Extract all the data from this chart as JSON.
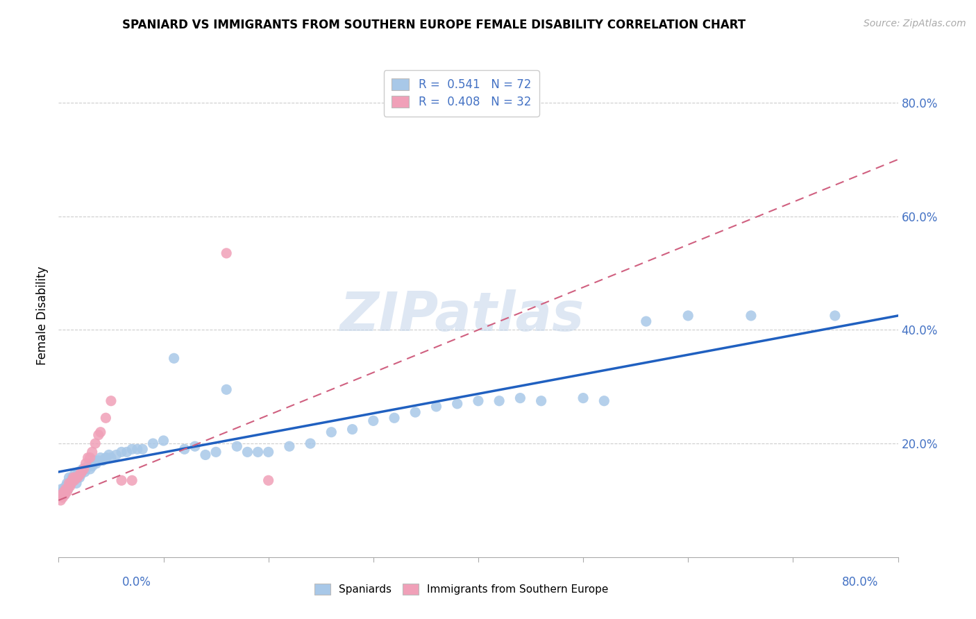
{
  "title": "SPANIARD VS IMMIGRANTS FROM SOUTHERN EUROPE FEMALE DISABILITY CORRELATION CHART",
  "source": "Source: ZipAtlas.com",
  "ylabel": "Female Disability",
  "xmin": 0.0,
  "xmax": 0.8,
  "ymin": 0.0,
  "ymax": 0.85,
  "yticks": [
    0.2,
    0.4,
    0.6,
    0.8
  ],
  "ytick_labels": [
    "20.0%",
    "40.0%",
    "60.0%",
    "80.0%"
  ],
  "watermark": "ZIPatlas",
  "legend_r1": "R =  0.541",
  "legend_n1": "N = 72",
  "legend_r2": "R =  0.408",
  "legend_n2": "N = 32",
  "color_blue": "#a8c8e8",
  "color_pink": "#f0a0b8",
  "color_blue_line": "#2060c0",
  "color_pink_line": "#d06080",
  "spaniards_x": [
    0.002,
    0.003,
    0.004,
    0.005,
    0.006,
    0.007,
    0.008,
    0.009,
    0.01,
    0.01,
    0.012,
    0.013,
    0.014,
    0.015,
    0.016,
    0.017,
    0.018,
    0.019,
    0.02,
    0.021,
    0.022,
    0.023,
    0.025,
    0.026,
    0.028,
    0.03,
    0.032,
    0.034,
    0.036,
    0.038,
    0.04,
    0.042,
    0.045,
    0.048,
    0.05,
    0.055,
    0.06,
    0.065,
    0.07,
    0.075,
    0.08,
    0.09,
    0.1,
    0.11,
    0.12,
    0.13,
    0.14,
    0.15,
    0.16,
    0.17,
    0.18,
    0.19,
    0.2,
    0.22,
    0.24,
    0.26,
    0.28,
    0.3,
    0.32,
    0.34,
    0.36,
    0.38,
    0.4,
    0.42,
    0.44,
    0.46,
    0.5,
    0.52,
    0.56,
    0.6,
    0.66,
    0.74
  ],
  "spaniards_y": [
    0.11,
    0.12,
    0.115,
    0.12,
    0.11,
    0.125,
    0.13,
    0.12,
    0.13,
    0.14,
    0.13,
    0.14,
    0.135,
    0.145,
    0.14,
    0.13,
    0.145,
    0.15,
    0.14,
    0.145,
    0.15,
    0.155,
    0.15,
    0.155,
    0.16,
    0.155,
    0.16,
    0.17,
    0.165,
    0.17,
    0.175,
    0.17,
    0.175,
    0.18,
    0.175,
    0.18,
    0.185,
    0.185,
    0.19,
    0.19,
    0.19,
    0.2,
    0.205,
    0.35,
    0.19,
    0.195,
    0.18,
    0.185,
    0.295,
    0.195,
    0.185,
    0.185,
    0.185,
    0.195,
    0.2,
    0.22,
    0.225,
    0.24,
    0.245,
    0.255,
    0.265,
    0.27,
    0.275,
    0.275,
    0.28,
    0.275,
    0.28,
    0.275,
    0.415,
    0.425,
    0.425,
    0.425
  ],
  "immigrants_x": [
    0.002,
    0.003,
    0.004,
    0.005,
    0.006,
    0.007,
    0.008,
    0.009,
    0.01,
    0.011,
    0.012,
    0.013,
    0.014,
    0.015,
    0.016,
    0.018,
    0.02,
    0.022,
    0.024,
    0.026,
    0.028,
    0.03,
    0.032,
    0.035,
    0.038,
    0.04,
    0.045,
    0.05,
    0.06,
    0.07,
    0.16,
    0.2
  ],
  "immigrants_y": [
    0.1,
    0.11,
    0.105,
    0.115,
    0.11,
    0.12,
    0.115,
    0.12,
    0.13,
    0.125,
    0.13,
    0.135,
    0.14,
    0.135,
    0.14,
    0.14,
    0.145,
    0.15,
    0.155,
    0.165,
    0.175,
    0.175,
    0.185,
    0.2,
    0.215,
    0.22,
    0.245,
    0.275,
    0.135,
    0.135,
    0.535,
    0.135
  ],
  "blue_line_x0": 0.0,
  "blue_line_y0": 0.15,
  "blue_line_x1": 0.8,
  "blue_line_y1": 0.425,
  "pink_line_x0": 0.0,
  "pink_line_y0": 0.1,
  "pink_line_x1": 0.8,
  "pink_line_y1": 0.7
}
